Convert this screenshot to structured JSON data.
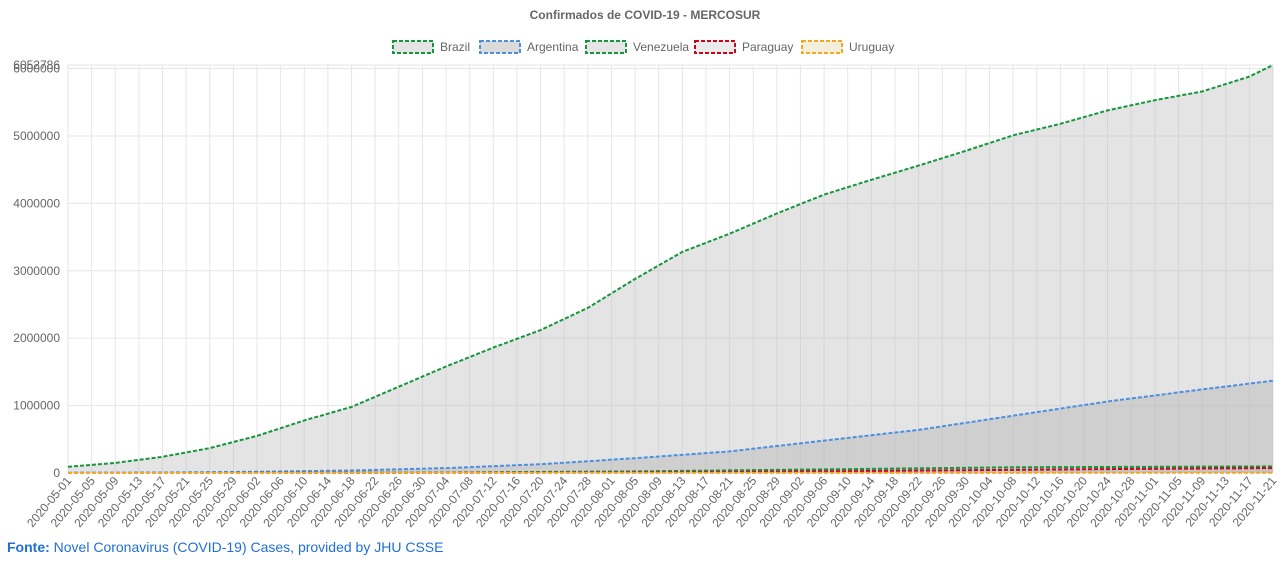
{
  "source": {
    "prefix": "Fonte:",
    "text": "Novel Coronavirus (COVID-19) Cases, provided by JHU CSSE"
  },
  "chart_data": {
    "type": "area",
    "title": "Confirmados de COVID-19 - MERCOSUR",
    "legend_position": "top",
    "grid": true,
    "ylim": [
      0,
      6052786
    ],
    "y_ticks": [
      0,
      1000000,
      2000000,
      3000000,
      4000000,
      5000000,
      6000000,
      6052786
    ],
    "x_start": "2020-05-01",
    "x_end": "2020-11-21",
    "x_tick_labels": [
      "2020-05-01",
      "2020-05-05",
      "2020-05-09",
      "2020-05-13",
      "2020-05-17",
      "2020-05-21",
      "2020-05-25",
      "2020-05-29",
      "2020-06-02",
      "2020-06-06",
      "2020-06-10",
      "2020-06-14",
      "2020-06-18",
      "2020-06-22",
      "2020-06-26",
      "2020-06-30",
      "2020-07-04",
      "2020-07-08",
      "2020-07-12",
      "2020-07-16",
      "2020-07-20",
      "2020-07-24",
      "2020-07-28",
      "2020-08-01",
      "2020-08-05",
      "2020-08-09",
      "2020-08-13",
      "2020-08-17",
      "2020-08-21",
      "2020-08-25",
      "2020-08-29",
      "2020-09-02",
      "2020-09-06",
      "2020-09-10",
      "2020-09-14",
      "2020-09-18",
      "2020-09-22",
      "2020-09-26",
      "2020-09-30",
      "2020-10-04",
      "2020-10-08",
      "2020-10-12",
      "2020-10-16",
      "2020-10-20",
      "2020-10-24",
      "2020-10-28",
      "2020-11-01",
      "2020-11-05",
      "2020-11-09",
      "2020-11-13",
      "2020-11-17",
      "2020-11-21"
    ],
    "series": [
      {
        "name": "Brazil",
        "color": "#14963c",
        "fill": "rgba(190,190,190,0.42)",
        "x": [
          "2020-05-01",
          "2020-05-09",
          "2020-05-17",
          "2020-05-25",
          "2020-06-02",
          "2020-06-10",
          "2020-06-18",
          "2020-06-26",
          "2020-07-04",
          "2020-07-12",
          "2020-07-20",
          "2020-07-28",
          "2020-08-05",
          "2020-08-13",
          "2020-08-21",
          "2020-08-29",
          "2020-09-06",
          "2020-09-14",
          "2020-09-22",
          "2020-09-30",
          "2020-10-08",
          "2020-10-16",
          "2020-10-24",
          "2020-11-01",
          "2020-11-09",
          "2020-11-17",
          "2020-11-21"
        ],
        "values": [
          92000,
          150000,
          240000,
          370000,
          550000,
          780000,
          980000,
          1280000,
          1580000,
          1860000,
          2120000,
          2450000,
          2880000,
          3280000,
          3550000,
          3850000,
          4130000,
          4350000,
          4560000,
          4780000,
          5010000,
          5180000,
          5380000,
          5530000,
          5660000,
          5880000,
          6052786
        ]
      },
      {
        "name": "Argentina",
        "color": "#4a90e2",
        "fill": "rgba(190,190,190,0.55)",
        "x": [
          "2020-05-01",
          "2020-05-17",
          "2020-06-02",
          "2020-06-18",
          "2020-07-04",
          "2020-07-20",
          "2020-08-05",
          "2020-08-21",
          "2020-09-06",
          "2020-09-22",
          "2020-10-08",
          "2020-10-24",
          "2020-11-09",
          "2020-11-21"
        ],
        "values": [
          4400,
          7500,
          18000,
          37000,
          72000,
          130000,
          220000,
          320000,
          480000,
          640000,
          850000,
          1060000,
          1240000,
          1370000
        ]
      },
      {
        "name": "Venezuela",
        "color": "#14963c",
        "fill": "rgba(190,190,190,0.4)",
        "x": [
          "2020-05-01",
          "2020-06-02",
          "2020-07-04",
          "2020-08-05",
          "2020-09-06",
          "2020-10-08",
          "2020-11-21"
        ],
        "values": [
          300,
          1800,
          7000,
          24000,
          54000,
          85000,
          98000
        ]
      },
      {
        "name": "Paraguay",
        "color": "#d0021b",
        "fill": "rgba(190,190,190,0.3)",
        "x": [
          "2020-05-01",
          "2020-06-18",
          "2020-07-20",
          "2020-08-21",
          "2020-09-22",
          "2020-10-24",
          "2020-11-21"
        ],
        "values": [
          250,
          1200,
          4000,
          14000,
          35000,
          58000,
          72000
        ]
      },
      {
        "name": "Uruguay",
        "color": "#f5a623",
        "fill": "rgba(235,225,190,0.55)",
        "x": [
          "2020-05-01",
          "2020-07-04",
          "2020-09-06",
          "2020-11-21"
        ],
        "values": [
          630,
          950,
          1700,
          4800
        ]
      }
    ]
  }
}
